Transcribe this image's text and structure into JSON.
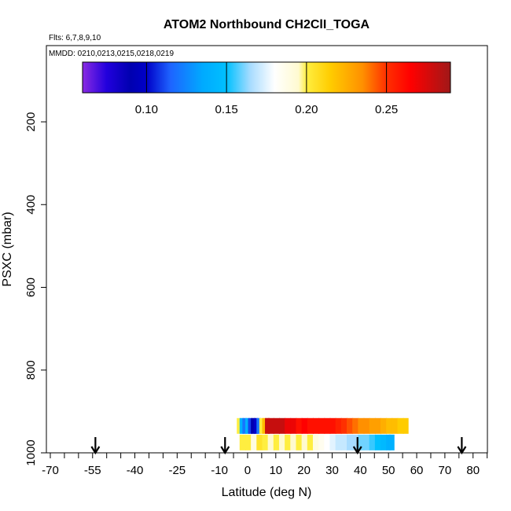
{
  "chart_data": {
    "type": "scatter",
    "title": "ATOM2 Northbound CH2ClI_TOGA",
    "notes": {
      "flights": "Flts: 6,7,8,9,10",
      "dates": "MMDD: 0210,0213,0215,0218,0219"
    },
    "xlabel": "Latitude (deg N)",
    "ylabel": "PSXC (mbar)",
    "xlim": [
      -70,
      85
    ],
    "ylim": [
      1000,
      0
    ],
    "y_reversed": true,
    "x_ticks_labeled": [
      -70,
      -55,
      -40,
      -25,
      -10,
      0,
      10,
      20,
      30,
      40,
      50,
      60,
      70,
      80
    ],
    "x_tick_labels": [
      "-70",
      "-55",
      "-40",
      "-25",
      "-10",
      "0",
      "10",
      "20",
      "30",
      "40",
      "50",
      "60",
      "70",
      "80"
    ],
    "y_ticks": [
      200,
      400,
      600,
      800,
      1000
    ],
    "y_tick_labels": [
      "200",
      "400",
      "600",
      "800",
      "1000"
    ],
    "colorbar": {
      "min": 0.06,
      "max": 0.29,
      "ticks": [
        0.1,
        0.15,
        0.2,
        0.25
      ],
      "tick_labels": [
        "0.10",
        "0.15",
        "0.20",
        "0.25"
      ],
      "stops": [
        {
          "value": 0.06,
          "color": "#8a2be2"
        },
        {
          "value": 0.075,
          "color": "#2200dd"
        },
        {
          "value": 0.09,
          "color": "#0000b0"
        },
        {
          "value": 0.1,
          "color": "#0000c8"
        },
        {
          "value": 0.115,
          "color": "#1e64ff"
        },
        {
          "value": 0.135,
          "color": "#00aaff"
        },
        {
          "value": 0.15,
          "color": "#00c0ff"
        },
        {
          "value": 0.165,
          "color": "#a8dcff"
        },
        {
          "value": 0.18,
          "color": "#ffffff"
        },
        {
          "value": 0.195,
          "color": "#fffad0"
        },
        {
          "value": 0.2,
          "color": "#ffee40"
        },
        {
          "value": 0.215,
          "color": "#ffcc00"
        },
        {
          "value": 0.235,
          "color": "#ff9000"
        },
        {
          "value": 0.25,
          "color": "#ff3000"
        },
        {
          "value": 0.265,
          "color": "#ff0000"
        },
        {
          "value": 0.29,
          "color": "#a01818"
        }
      ]
    },
    "arrows_lat": [
      -54,
      -8,
      39,
      76
    ],
    "series": [
      {
        "level": "upper",
        "pressure": 935,
        "points": [
          {
            "x": -3,
            "v": 0.2
          },
          {
            "x": -2,
            "v": 0.14
          },
          {
            "x": -1,
            "v": 0.12
          },
          {
            "x": 0,
            "v": 0.14
          },
          {
            "x": 1,
            "v": 0.11
          },
          {
            "x": 2,
            "v": 0.09
          },
          {
            "x": 3,
            "v": 0.1
          },
          {
            "x": 4,
            "v": 0.12
          },
          {
            "x": 5,
            "v": 0.2
          },
          {
            "x": 6,
            "v": 0.22
          },
          {
            "x": 7,
            "v": 0.28
          },
          {
            "x": 8,
            "v": 0.28
          },
          {
            "x": 10,
            "v": 0.28
          },
          {
            "x": 12,
            "v": 0.28
          },
          {
            "x": 14,
            "v": 0.27
          },
          {
            "x": 16,
            "v": 0.27
          },
          {
            "x": 18,
            "v": 0.26
          },
          {
            "x": 20,
            "v": 0.265
          },
          {
            "x": 22,
            "v": 0.26
          },
          {
            "x": 24,
            "v": 0.26
          },
          {
            "x": 26,
            "v": 0.26
          },
          {
            "x": 28,
            "v": 0.26
          },
          {
            "x": 30,
            "v": 0.26
          },
          {
            "x": 32,
            "v": 0.255
          },
          {
            "x": 34,
            "v": 0.25
          },
          {
            "x": 36,
            "v": 0.245
          },
          {
            "x": 38,
            "v": 0.24
          },
          {
            "x": 40,
            "v": 0.235
          },
          {
            "x": 42,
            "v": 0.235
          },
          {
            "x": 44,
            "v": 0.23
          },
          {
            "x": 46,
            "v": 0.23
          },
          {
            "x": 48,
            "v": 0.225
          },
          {
            "x": 50,
            "v": 0.22
          },
          {
            "x": 52,
            "v": 0.22
          },
          {
            "x": 54,
            "v": 0.215
          },
          {
            "x": 56,
            "v": 0.215
          }
        ]
      },
      {
        "level": "lower",
        "pressure": 975,
        "points": [
          {
            "x": -2,
            "v": 0.2
          },
          {
            "x": 0,
            "v": 0.2
          },
          {
            "x": 2,
            "v": 0.19
          },
          {
            "x": 4,
            "v": 0.205
          },
          {
            "x": 6,
            "v": 0.2
          },
          {
            "x": 8,
            "v": 0.195
          },
          {
            "x": 10,
            "v": 0.2
          },
          {
            "x": 12,
            "v": 0.195
          },
          {
            "x": 14,
            "v": 0.2
          },
          {
            "x": 16,
            "v": 0.195
          },
          {
            "x": 18,
            "v": 0.2
          },
          {
            "x": 20,
            "v": 0.195
          },
          {
            "x": 22,
            "v": 0.2
          },
          {
            "x": 24,
            "v": 0.19
          },
          {
            "x": 26,
            "v": 0.185
          },
          {
            "x": 28,
            "v": 0.18
          },
          {
            "x": 30,
            "v": 0.175
          },
          {
            "x": 32,
            "v": 0.17
          },
          {
            "x": 34,
            "v": 0.17
          },
          {
            "x": 36,
            "v": 0.165
          },
          {
            "x": 38,
            "v": 0.165
          },
          {
            "x": 40,
            "v": 0.16
          },
          {
            "x": 42,
            "v": 0.16
          },
          {
            "x": 44,
            "v": 0.155
          },
          {
            "x": 46,
            "v": 0.15
          },
          {
            "x": 48,
            "v": 0.145
          },
          {
            "x": 50,
            "v": 0.14
          },
          {
            "x": 51,
            "v": 0.14
          }
        ]
      }
    ]
  }
}
